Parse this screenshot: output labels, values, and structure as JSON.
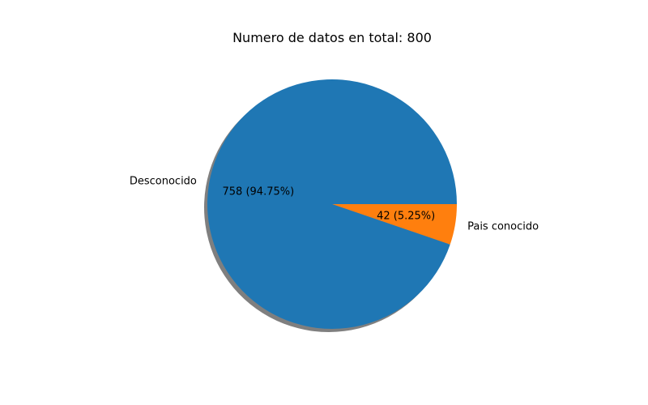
{
  "chart_data": {
    "type": "pie",
    "title": "Numero de datos en total: 800",
    "slices": [
      {
        "label": "Pais conocido",
        "value": 42,
        "autopct": "42 (5.25%)",
        "color": "#ff7f0e"
      },
      {
        "label": "Desconocido",
        "value": 758,
        "autopct": "758 (94.75%)",
        "color": "#1f77b4"
      }
    ],
    "shadow": true,
    "start_angle_deg": 0,
    "direction": "clockwise"
  }
}
